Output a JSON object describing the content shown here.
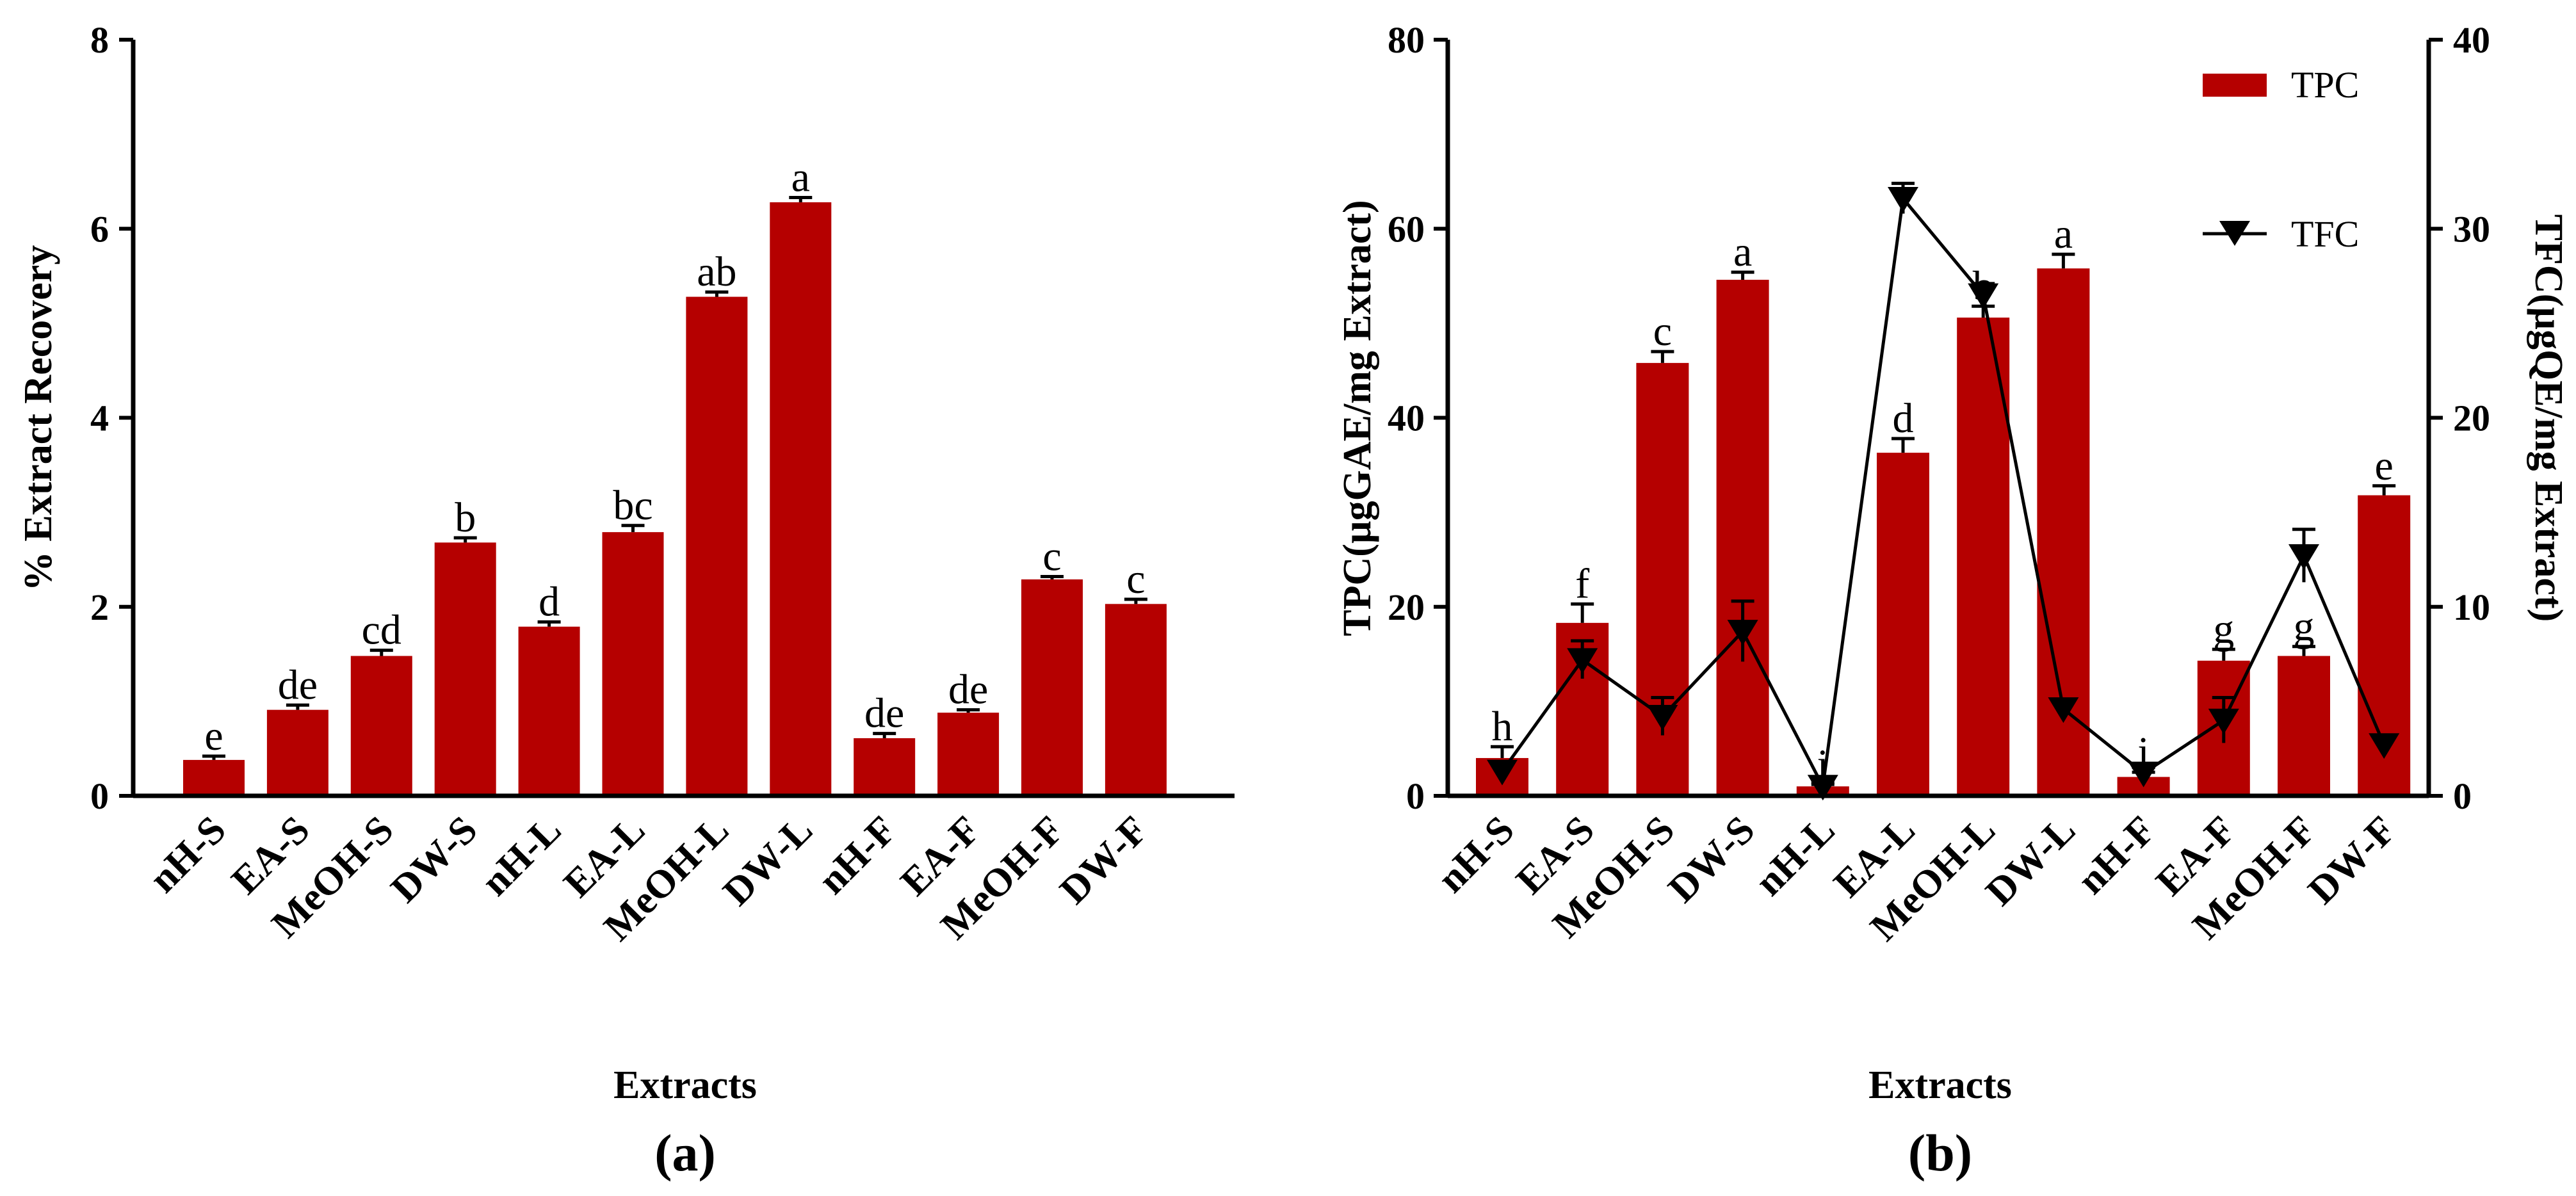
{
  "colors": {
    "bar": "#b50000",
    "line": "#000000",
    "axis": "#000000"
  },
  "chart_data": [
    {
      "type": "bar",
      "panel": "(a)",
      "categories": [
        "nH-S",
        "EA-S",
        "MeOH-S",
        "DW-S",
        "nH-L",
        "EA-L",
        "MeOH-L",
        "DW-L",
        "nH-F",
        "EA-F",
        "MeOH-F",
        "DW-F"
      ],
      "series": [
        {
          "name": "% Extract Recovery",
          "values": [
            0.38,
            0.91,
            1.48,
            2.68,
            1.79,
            2.79,
            5.28,
            6.28,
            0.61,
            0.88,
            2.29,
            2.03
          ],
          "errors": [
            0.04,
            0.05,
            0.06,
            0.05,
            0.05,
            0.07,
            0.05,
            0.05,
            0.05,
            0.03,
            0.03,
            0.05
          ],
          "letters": [
            "e",
            "de",
            "cd",
            "b",
            "d",
            "bc",
            "ab",
            "a",
            "de",
            "de",
            "c",
            "c"
          ]
        }
      ],
      "xlabel": "Extracts",
      "ylabel": "% Extract Recovery",
      "ylim": [
        0,
        8
      ],
      "yticks": [
        0,
        2,
        4,
        6,
        8
      ]
    },
    {
      "type": "bar+line",
      "panel": "(b)",
      "categories": [
        "nH-S",
        "EA-S",
        "MeOH-S",
        "DW-S",
        "nH-L",
        "EA-L",
        "MeOH-L",
        "DW-L",
        "nH-F",
        "EA-F",
        "MeOH-F",
        "DW-F"
      ],
      "series": [
        {
          "name": "TPC",
          "axis": "left",
          "kind": "bar",
          "values": [
            4.0,
            18.3,
            45.8,
            54.6,
            1.0,
            36.3,
            50.6,
            55.8,
            2.0,
            14.3,
            14.8,
            31.8
          ],
          "errors": [
            1.2,
            2.0,
            1.2,
            0.8,
            0.2,
            1.5,
            1.2,
            1.5,
            0.5,
            1.2,
            1.0,
            1.0
          ],
          "letters": [
            "h",
            "f",
            "c",
            "a",
            "i",
            "d",
            "b",
            "a",
            "i",
            "g",
            "g",
            "e"
          ]
        },
        {
          "name": "TFC",
          "axis": "right",
          "kind": "line",
          "values": [
            1.3,
            7.2,
            4.2,
            8.7,
            0.5,
            31.6,
            26.5,
            4.6,
            1.2,
            4.0,
            12.7,
            2.7
          ],
          "errors": [
            0.5,
            1.0,
            1.0,
            1.6,
            0.2,
            0.8,
            0.6,
            0.5,
            0.3,
            1.2,
            1.4,
            0.4
          ]
        }
      ],
      "xlabel": "Extracts",
      "ylabel": "TPC(µgGAE/mg Extract)",
      "y2label": "TFC(µgQE/mg Extract)",
      "ylim": [
        0,
        80
      ],
      "yticks": [
        0,
        20,
        40,
        60,
        80
      ],
      "y2lim": [
        0,
        40
      ],
      "y2ticks": [
        0,
        10,
        20,
        30,
        40
      ],
      "legend": [
        "TPC",
        "TFC"
      ],
      "legend_position": "top-right"
    }
  ]
}
